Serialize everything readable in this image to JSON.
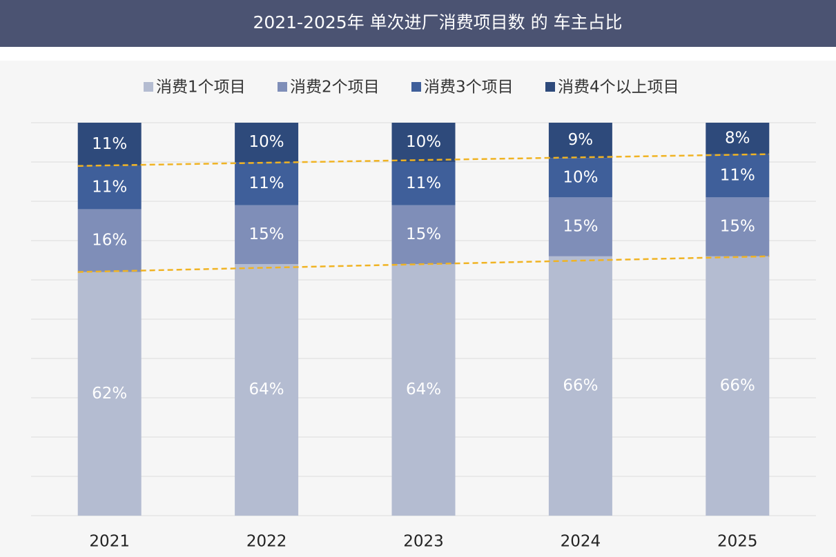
{
  "chart_data": {
    "type": "stacked_bar",
    "title": "2021-2025年 单次进厂消费项目数 的 车主占比",
    "categories": [
      "2021",
      "2022",
      "2023",
      "2024",
      "2025"
    ],
    "series": [
      {
        "name": "消费1个项目",
        "color": "#b4bcd1",
        "values": [
          62,
          64,
          64,
          66,
          66
        ],
        "value_labels": [
          "62%",
          "64%",
          "64%",
          "66%",
          "66%"
        ]
      },
      {
        "name": "消费2个项目",
        "color": "#7f8eb8",
        "values": [
          16,
          15,
          15,
          15,
          15
        ],
        "value_labels": [
          "16%",
          "15%",
          "15%",
          "15%",
          "15%"
        ]
      },
      {
        "name": "消费3个项目",
        "color": "#3f5f9a",
        "values": [
          11,
          11,
          11,
          10,
          11
        ],
        "value_labels": [
          "11%",
          "11%",
          "11%",
          "10%",
          "11%"
        ]
      },
      {
        "name": "消费4个以上项目",
        "color": "#2e4a7b",
        "values": [
          11,
          10,
          10,
          9,
          8
        ],
        "value_labels": [
          "11%",
          "10%",
          "10%",
          "9%",
          "8%"
        ]
      }
    ],
    "ylim": [
      0,
      100
    ],
    "yticks": [
      0,
      10,
      20,
      30,
      40,
      50,
      60,
      70,
      80,
      90,
      100
    ],
    "grid": true
  }
}
